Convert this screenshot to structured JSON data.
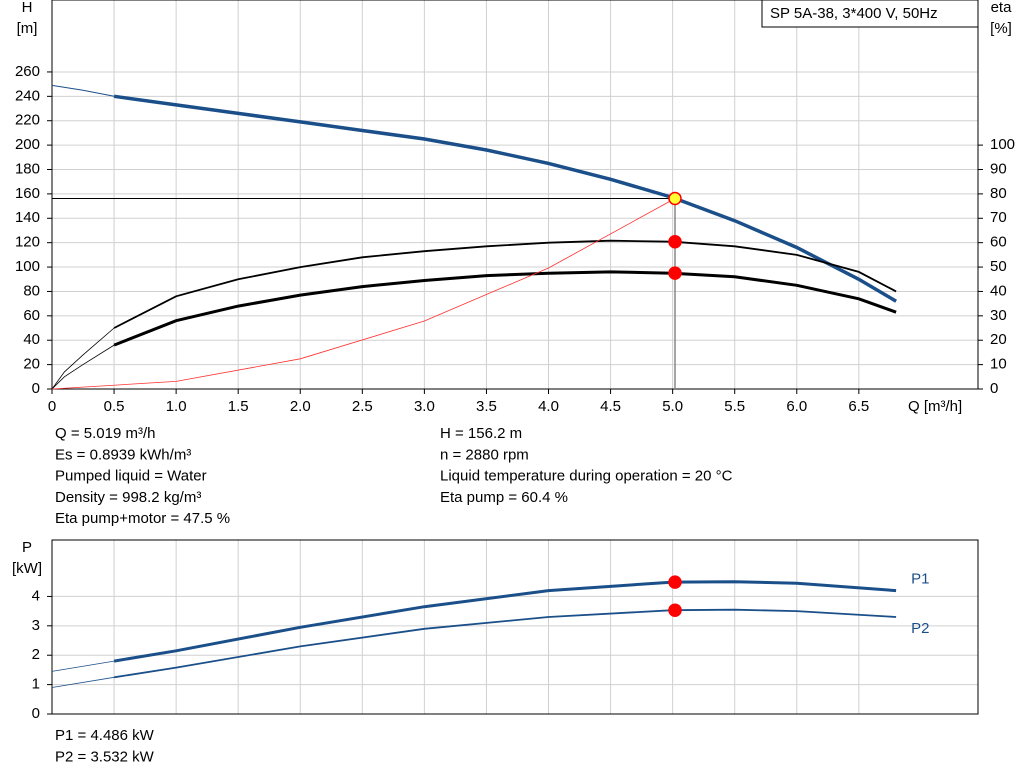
{
  "chart_data": [
    {
      "type": "line",
      "title": "SP 5A-38, 3*400 V, 50Hz",
      "xlabel": "Q [m³/h]",
      "ylabel": [
        "H",
        "[m]"
      ],
      "y2label": [
        "eta",
        "[%]"
      ],
      "xlim": [
        0,
        7.46
      ],
      "ylim": [
        0,
        319
      ],
      "y2lim": [
        0,
        159.5
      ],
      "xticks": [
        0,
        0.5,
        {
          "value": 1,
          "label": "1.0"
        },
        1.5,
        {
          "value": 2,
          "label": "2.0"
        },
        2.5,
        {
          "value": 3,
          "label": "3.0"
        },
        3.5,
        {
          "value": 4,
          "label": "4.0"
        },
        4.5,
        {
          "value": 5,
          "label": "5.0"
        },
        5.5,
        {
          "value": 6,
          "label": "6.0"
        },
        6.5
      ],
      "yticks": [
        0,
        20,
        40,
        60,
        80,
        100,
        120,
        140,
        160,
        180,
        200,
        220,
        240,
        260
      ],
      "y2ticks": [
        0,
        10,
        20,
        30,
        40,
        50,
        60,
        70,
        80,
        90,
        100
      ],
      "grid": true,
      "series": [
        {
          "color": "#1b4f8a",
          "width": 1,
          "x": [
            0,
            0.25,
            0.5
          ],
          "values": [
            249,
            245,
            240
          ]
        },
        {
          "color": "#1b4f8a",
          "width": 3.5,
          "x": [
            0.5,
            1,
            1.5,
            2,
            2.5,
            3,
            3.5,
            4,
            4.5,
            5,
            5.5,
            6,
            6.5,
            6.8
          ],
          "values": [
            240,
            233,
            226,
            219,
            212,
            205,
            196,
            185,
            172,
            157,
            138,
            116,
            90,
            72
          ]
        },
        {
          "color": "#000000",
          "width": 0.8,
          "axis": "y2",
          "x": [
            0,
            0.1,
            0.25,
            0.5
          ],
          "values": [
            0,
            7,
            14,
            25
          ]
        },
        {
          "color": "#000000",
          "width": 1.8,
          "axis": "y2",
          "x": [
            0.5,
            1,
            1.5,
            2,
            2.5,
            3,
            3.5,
            4,
            4.5,
            5,
            5.5,
            6,
            6.5,
            6.8
          ],
          "values": [
            25,
            38,
            45,
            50,
            54,
            56.5,
            58.5,
            60,
            60.8,
            60.4,
            58.5,
            55,
            48,
            40
          ]
        },
        {
          "color": "#000000",
          "width": 0.8,
          "axis": "y2",
          "x": [
            0,
            0.1,
            0.25,
            0.5
          ],
          "values": [
            0,
            5,
            10,
            18
          ]
        },
        {
          "color": "#000000",
          "width": 3,
          "axis": "y2",
          "x": [
            0.5,
            1,
            1.5,
            2,
            2.5,
            3,
            3.5,
            4,
            4.5,
            5,
            5.5,
            6,
            6.5,
            6.8
          ],
          "values": [
            18,
            28,
            34,
            38.5,
            42,
            44.5,
            46.5,
            47.5,
            48,
            47.5,
            46,
            42.5,
            37,
            31.5
          ]
        },
        {
          "color": "#ff3030",
          "width": 0.8,
          "x": [
            0,
            1,
            2,
            3,
            4,
            5.019
          ],
          "values": [
            0,
            6.2,
            24.8,
            55.8,
            99.2,
            156.2
          ]
        }
      ],
      "operating_point": {
        "x": 5.019,
        "y": 156.2
      },
      "markers": [
        {
          "x": 5.019,
          "y": 156.2,
          "color": "#ffff33"
        },
        {
          "x": 5.019,
          "y": 60.4,
          "axis": "y2",
          "color": "#ff0000"
        },
        {
          "x": 5.019,
          "y": 47.5,
          "axis": "y2",
          "color": "#ff0000"
        }
      ],
      "annotations": [
        [
          "Q = 5.019 m³/h",
          "Es = 0.8939 kWh/m³",
          "Pumped liquid = Water",
          "Density = 998.2 kg/m³",
          "Eta pump+motor = 47.5 %"
        ],
        [
          "H = 156.2 m",
          "n = 2880 rpm",
          "Liquid temperature during operation = 20 °C",
          "Eta pump = 60.4 %"
        ]
      ]
    },
    {
      "type": "line",
      "ylabel": [
        "P",
        "[kW]"
      ],
      "xlim": [
        0,
        7.46
      ],
      "ylim": [
        0,
        5.92
      ],
      "yticks": [
        0,
        1,
        2,
        3,
        4
      ],
      "grid": true,
      "series": [
        {
          "color": "#1b4f8a",
          "width": 0.8,
          "x": [
            0,
            0.5
          ],
          "values": [
            1.45,
            1.8
          ]
        },
        {
          "name": "P1",
          "color": "#1b4f8a",
          "width": 3,
          "x": [
            0.5,
            1,
            2,
            3,
            4,
            5,
            5.5,
            6,
            6.8
          ],
          "values": [
            1.8,
            2.15,
            2.95,
            3.65,
            4.2,
            4.486,
            4.5,
            4.45,
            4.2
          ]
        },
        {
          "color": "#1b4f8a",
          "width": 0.8,
          "x": [
            0,
            0.5
          ],
          "values": [
            0.9,
            1.25
          ]
        },
        {
          "name": "P2",
          "color": "#1b4f8a",
          "width": 1.8,
          "x": [
            0.5,
            1,
            2,
            3,
            4,
            5,
            5.5,
            6,
            6.8
          ],
          "values": [
            1.25,
            1.58,
            2.3,
            2.9,
            3.3,
            3.532,
            3.55,
            3.5,
            3.3
          ]
        }
      ],
      "markers": [
        {
          "x": 5.019,
          "y": 4.486,
          "color": "#ff0000"
        },
        {
          "x": 5.019,
          "y": 3.532,
          "color": "#ff0000"
        }
      ],
      "annotations": [
        [
          "P1 = 4.486 kW",
          "P2 = 3.532 kW"
        ]
      ]
    }
  ]
}
